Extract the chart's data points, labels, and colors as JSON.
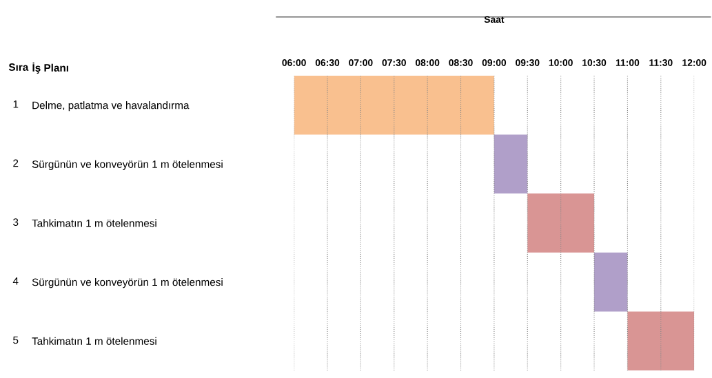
{
  "chart_data": {
    "type": "bar",
    "orientation": "horizontal",
    "xlabel": "Saat",
    "categories": [
      "Delme, patlatma ve havalandırma",
      "Sürgünün ve konveyörün 1 m ötelenmesi",
      "Tahkimatın 1 m ötelenmesi",
      "Sürgünün ve konveyörün 1 m ötelenmesi",
      "Tahkimatın 1 m ötelenmesi"
    ],
    "base": [
      6,
      9,
      9.5,
      10.5,
      11
    ],
    "values": [
      3,
      0.5,
      1,
      0.5,
      1
    ],
    "colors": [
      "#f9c08f",
      "#b09fc9",
      "#d99594",
      "#b09fc9",
      "#d99594"
    ],
    "xlim": [
      6,
      12
    ],
    "xticks": [
      {
        "value": 6,
        "label": "06:00"
      },
      {
        "value": 6.5,
        "label": "06:30"
      },
      {
        "value": 7,
        "label": "07:00"
      },
      {
        "value": 7.5,
        "label": "07:30"
      },
      {
        "value": 8,
        "label": "08:00"
      },
      {
        "value": 8.5,
        "label": "08:30"
      },
      {
        "value": 9,
        "label": "09:00"
      },
      {
        "value": 9.5,
        "label": "09:30"
      },
      {
        "value": 10,
        "label": "10:00"
      },
      {
        "value": 10.5,
        "label": "10:30"
      },
      {
        "value": 11,
        "label": "11:00"
      },
      {
        "value": 11.5,
        "label": "11:30"
      },
      {
        "value": 12,
        "label": "12:00"
      }
    ],
    "grid": "x",
    "annotations": [
      "Sıra",
      "İş Planı",
      "1",
      "2",
      "3",
      "4",
      "5"
    ]
  }
}
